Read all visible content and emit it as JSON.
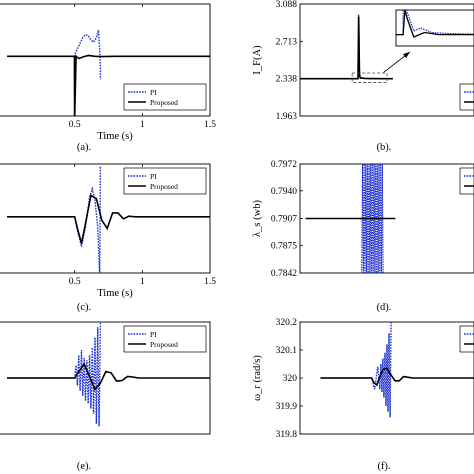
{
  "chart_data": [
    {
      "type": "line",
      "panel": "a",
      "caption": "(a).",
      "xlabel": "Time (s)",
      "ylabel": "",
      "xlim": [
        0,
        1.5
      ],
      "xticks": [
        "0.5",
        "1",
        "1.5"
      ],
      "yticks": [],
      "legend": "bottom-right",
      "grid": false,
      "series": [
        {
          "name": "PI",
          "style": "dotted",
          "color": "#1f2fd0",
          "x": [
            0,
            0.499,
            0.5,
            0.5,
            0.502,
            0.51,
            0.52,
            0.54,
            0.56,
            0.58,
            0.6,
            0.62,
            0.64,
            0.66,
            0.675,
            0.685,
            0.69,
            0.69,
            0.695,
            0.695
          ],
          "y": [
            0,
            0,
            0,
            -1.2,
            0.05,
            0.12,
            0.2,
            0.35,
            0.5,
            0.58,
            0.55,
            0.44,
            0.38,
            0.5,
            0.7,
            0.2,
            -0.3,
            -0.6,
            -0.6,
            -0.6
          ]
        },
        {
          "name": "Proposed",
          "style": "solid",
          "color": "#000000",
          "x": [
            0,
            0.498,
            0.499,
            0.5,
            0.51,
            0.53,
            0.56,
            0.6,
            0.65,
            0.7,
            0.8,
            1.0,
            1.5
          ],
          "y": [
            0,
            0,
            -1.6,
            -1.6,
            0.0,
            -0.06,
            -0.02,
            0.02,
            0.0,
            -0.01,
            0.0,
            0.0,
            0.0
          ]
        }
      ]
    },
    {
      "type": "line",
      "panel": "b",
      "caption": "(b).",
      "xlabel": "",
      "ylabel": "I_F(A)",
      "ylim": [
        1.963,
        3.088
      ],
      "yticks": [
        "3.088",
        "2.713",
        "2.338",
        "1.963"
      ],
      "legend": "bottom-right",
      "grid": false,
      "series": [
        {
          "name": "PI",
          "style": "dotted",
          "color": "#1f2fd0",
          "x": [
            0,
            0.499,
            0.5,
            0.505,
            0.51,
            0.512,
            0.515,
            0.52,
            0.56,
            0.6,
            0.7,
            0.8
          ],
          "y": [
            2.338,
            2.338,
            2.338,
            2.98,
            2.6,
            2.44,
            2.38,
            2.35,
            2.343,
            2.34,
            2.338,
            2.338
          ]
        },
        {
          "name": "Proposed",
          "style": "solid",
          "color": "#000000",
          "x": [
            0,
            0.499,
            0.5,
            0.506,
            0.512,
            0.515,
            0.52,
            0.56,
            0.6,
            0.7,
            0.8
          ],
          "y": [
            2.338,
            2.338,
            2.338,
            2.96,
            2.42,
            2.36,
            2.345,
            2.34,
            2.339,
            2.338,
            2.338
          ]
        }
      ]
    },
    {
      "type": "line",
      "panel": "c",
      "caption": "(c).",
      "xlabel": "Time (s)",
      "ylabel": "",
      "xlim": [
        0,
        1.5
      ],
      "xticks": [
        "0.5",
        "1",
        "1.5"
      ],
      "yticks": [],
      "legend": "top-right",
      "grid": false,
      "series": [
        {
          "name": "PI",
          "style": "dotted",
          "color": "#1f2fd0",
          "x": [
            0,
            0.5,
            0.52,
            0.55,
            0.58,
            0.61,
            0.63,
            0.65,
            0.67,
            0.685,
            0.69,
            0.695,
            0.7
          ],
          "y": [
            0,
            0,
            -0.4,
            -0.9,
            -0.3,
            0.6,
            0.85,
            0.5,
            -0.3,
            -1.8,
            1.5,
            1.5,
            1.5
          ]
        },
        {
          "name": "Proposed",
          "style": "solid",
          "color": "#000000",
          "x": [
            0,
            0.5,
            0.52,
            0.55,
            0.58,
            0.62,
            0.66,
            0.7,
            0.74,
            0.78,
            0.82,
            0.86,
            0.9,
            0.95,
            1.0,
            1.5
          ],
          "y": [
            0,
            0,
            -0.35,
            -0.8,
            -0.2,
            0.65,
            0.55,
            -0.1,
            -0.35,
            0.12,
            0.12,
            -0.06,
            0.02,
            0.0,
            0.0,
            0.0
          ]
        }
      ]
    },
    {
      "type": "line",
      "panel": "d",
      "caption": "(d).",
      "xlabel": "",
      "ylabel": "λ_s (wb)",
      "ylim": [
        0.7842,
        0.7972
      ],
      "yticks": [
        "0.7972",
        "0.7940",
        "0.7907",
        "0.7875",
        "0.7842"
      ],
      "legend": "top-right",
      "grid": false,
      "series": [
        {
          "name": "PI",
          "style": "dotted",
          "color": "#1f2fd0",
          "x": [
            0.5,
            0.69
          ],
          "y": [
            0.7842,
            0.7972
          ]
        },
        {
          "name": "Proposed",
          "style": "solid",
          "color": "#000000",
          "x": [
            0,
            0.8
          ],
          "y": [
            0.7907,
            0.7907
          ]
        }
      ]
    },
    {
      "type": "line",
      "panel": "e",
      "caption": "(e).",
      "xlabel": "",
      "ylabel": "",
      "xlim": [
        0,
        1.5
      ],
      "xticks": [],
      "yticks": [],
      "legend": "top-right",
      "grid": false,
      "series": [
        {
          "name": "PI",
          "style": "dotted",
          "color": "#1f2fd0",
          "x": [
            0,
            0.5,
            0.51,
            0.52,
            0.53,
            0.54,
            0.55,
            0.56,
            0.57,
            0.58,
            0.59,
            0.6,
            0.61,
            0.62,
            0.63,
            0.64,
            0.65,
            0.66,
            0.67,
            0.68,
            0.69
          ],
          "y": [
            0,
            0,
            0.5,
            -0.3,
            0.9,
            -0.5,
            1.1,
            -0.7,
            0.8,
            -0.9,
            0.7,
            -1.0,
            0.9,
            -1.2,
            1.2,
            -1.4,
            1.6,
            -1.8,
            2.0,
            -1.9,
            2.2
          ]
        },
        {
          "name": "Proposed",
          "style": "solid",
          "color": "#000000",
          "x": [
            0,
            0.5,
            0.53,
            0.57,
            0.61,
            0.65,
            0.69,
            0.73,
            0.77,
            0.81,
            0.85,
            0.89,
            0.93,
            0.97,
            1.0,
            1.5
          ],
          "y": [
            0,
            0,
            0.25,
            0.55,
            0.05,
            -0.45,
            -0.2,
            0.25,
            0.2,
            -0.12,
            -0.1,
            0.06,
            0.04,
            0.0,
            0.0,
            0.0
          ]
        }
      ]
    },
    {
      "type": "line",
      "panel": "f",
      "caption": "(f).",
      "xlabel": "",
      "ylabel": "ω_r (rad/s)",
      "ylim": [
        319.8,
        320.2
      ],
      "yticks": [
        "320.2",
        "320.1",
        "320",
        "319.9",
        "319.8"
      ],
      "legend": "top-right",
      "grid": false,
      "series": [
        {
          "name": "PI",
          "style": "dotted",
          "color": "#1f2fd0",
          "x": [
            0,
            0.5,
            0.51,
            0.52,
            0.53,
            0.54,
            0.55,
            0.56,
            0.57,
            0.58,
            0.59,
            0.6,
            0.61,
            0.62,
            0.63,
            0.64,
            0.65,
            0.66,
            0.67,
            0.68,
            0.69
          ],
          "y": [
            320,
            320,
            319.99,
            319.97,
            319.96,
            319.985,
            320.02,
            320.04,
            320.0,
            319.96,
            320.05,
            319.95,
            320.07,
            319.93,
            320.09,
            319.9,
            320.12,
            319.88,
            320.16,
            319.86,
            320.2
          ]
        },
        {
          "name": "Proposed",
          "style": "solid",
          "color": "#000000",
          "x": [
            0,
            0.5,
            0.52,
            0.55,
            0.58,
            0.61,
            0.65,
            0.69,
            0.73,
            0.77,
            0.81,
            0.85,
            0.9,
            1.0,
            1.5
          ],
          "y": [
            320,
            320,
            319.985,
            319.975,
            320.005,
            320.03,
            320.035,
            320.01,
            319.99,
            319.99,
            320.005,
            320.003,
            320.0,
            320.0,
            320.0
          ]
        }
      ]
    }
  ]
}
